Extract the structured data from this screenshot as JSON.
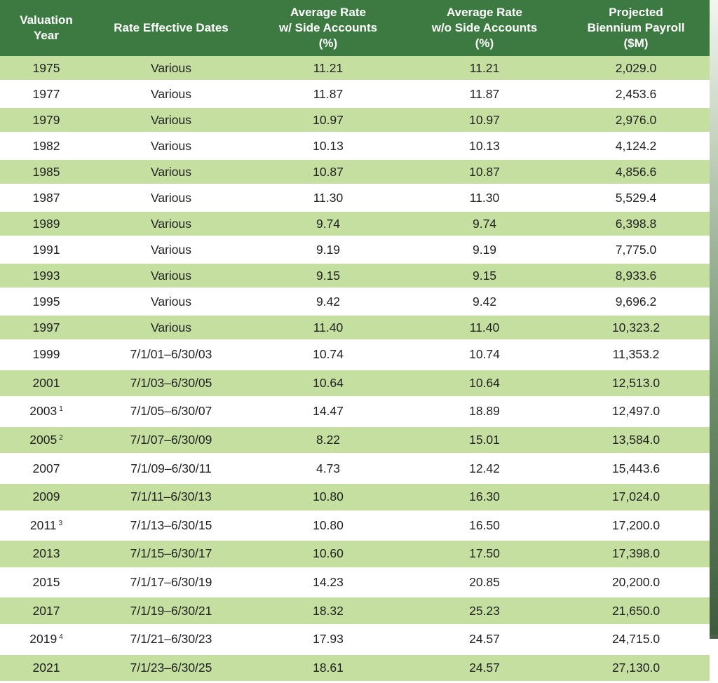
{
  "table": {
    "headers": [
      [
        "Valuation",
        "Year"
      ],
      [
        "Rate Effective Dates"
      ],
      [
        "Average Rate",
        "w/ Side Accounts",
        "(%)"
      ],
      [
        "Average Rate",
        "w/o Side Accounts",
        "(%)"
      ],
      [
        "Projected",
        "Biennium Payroll",
        "($M)"
      ]
    ],
    "rows": [
      {
        "year": "1975",
        "note": "",
        "dates": "Various",
        "with_side": "11.21",
        "without_side": "11.21",
        "payroll": "2,029.0"
      },
      {
        "year": "1977",
        "note": "",
        "dates": "Various",
        "with_side": "11.87",
        "without_side": "11.87",
        "payroll": "2,453.6"
      },
      {
        "year": "1979",
        "note": "",
        "dates": "Various",
        "with_side": "10.97",
        "without_side": "10.97",
        "payroll": "2,976.0"
      },
      {
        "year": "1982",
        "note": "",
        "dates": "Various",
        "with_side": "10.13",
        "without_side": "10.13",
        "payroll": "4,124.2"
      },
      {
        "year": "1985",
        "note": "",
        "dates": "Various",
        "with_side": "10.87",
        "without_side": "10.87",
        "payroll": "4,856.6"
      },
      {
        "year": "1987",
        "note": "",
        "dates": "Various",
        "with_side": "11.30",
        "without_side": "11.30",
        "payroll": "5,529.4"
      },
      {
        "year": "1989",
        "note": "",
        "dates": "Various",
        "with_side": "9.74",
        "without_side": "9.74",
        "payroll": "6,398.8"
      },
      {
        "year": "1991",
        "note": "",
        "dates": "Various",
        "with_side": "9.19",
        "without_side": "9.19",
        "payroll": "7,775.0"
      },
      {
        "year": "1993",
        "note": "",
        "dates": "Various",
        "with_side": "9.15",
        "without_side": "9.15",
        "payroll": "8,933.6"
      },
      {
        "year": "1995",
        "note": "",
        "dates": "Various",
        "with_side": "9.42",
        "without_side": "9.42",
        "payroll": "9,696.2"
      },
      {
        "year": "1997",
        "note": "",
        "dates": "Various",
        "with_side": "11.40",
        "without_side": "11.40",
        "payroll": "10,323.2"
      },
      {
        "year": "1999",
        "note": "",
        "dates": "7/1/01–6/30/03",
        "with_side": "10.74",
        "without_side": "10.74",
        "payroll": "11,353.2"
      },
      {
        "year": "2001",
        "note": "",
        "dates": "7/1/03–6/30/05",
        "with_side": "10.64",
        "without_side": "10.64",
        "payroll": "12,513.0"
      },
      {
        "year": "2003",
        "note": "1",
        "dates": "7/1/05–6/30/07",
        "with_side": "14.47",
        "without_side": "18.89",
        "payroll": "12,497.0"
      },
      {
        "year": "2005",
        "note": "2",
        "dates": "7/1/07–6/30/09",
        "with_side": "8.22",
        "without_side": "15.01",
        "payroll": "13,584.0"
      },
      {
        "year": "2007",
        "note": "",
        "dates": "7/1/09–6/30/11",
        "with_side": "4.73",
        "without_side": "12.42",
        "payroll": "15,443.6"
      },
      {
        "year": "2009",
        "note": "",
        "dates": "7/1/11–6/30/13",
        "with_side": "10.80",
        "without_side": "16.30",
        "payroll": "17,024.0"
      },
      {
        "year": "2011",
        "note": "3",
        "dates": "7/1/13–6/30/15",
        "with_side": "10.80",
        "without_side": "16.50",
        "payroll": "17,200.0"
      },
      {
        "year": "2013",
        "note": "",
        "dates": "7/1/15–6/30/17",
        "with_side": "10.60",
        "without_side": "17.50",
        "payroll": "17,398.0"
      },
      {
        "year": "2015",
        "note": "",
        "dates": "7/1/17–6/30/19",
        "with_side": "14.23",
        "without_side": "20.85",
        "payroll": "20,200.0"
      },
      {
        "year": "2017",
        "note": "",
        "dates": "7/1/19–6/30/21",
        "with_side": "18.32",
        "without_side": "25.23",
        "payroll": "21,650.0"
      },
      {
        "year": "2019",
        "note": "4",
        "dates": "7/1/21–6/30/23",
        "with_side": "17.93",
        "without_side": "24.57",
        "payroll": "24,715.0"
      },
      {
        "year": "2021",
        "note": "",
        "dates": "7/1/23–6/30/25",
        "with_side": "18.61",
        "without_side": "24.57",
        "payroll": "27,130.0"
      }
    ]
  },
  "colors": {
    "header_bg": "#3d7a41",
    "row_band": "#c5dfa0",
    "row_plain": "#ffffff"
  }
}
